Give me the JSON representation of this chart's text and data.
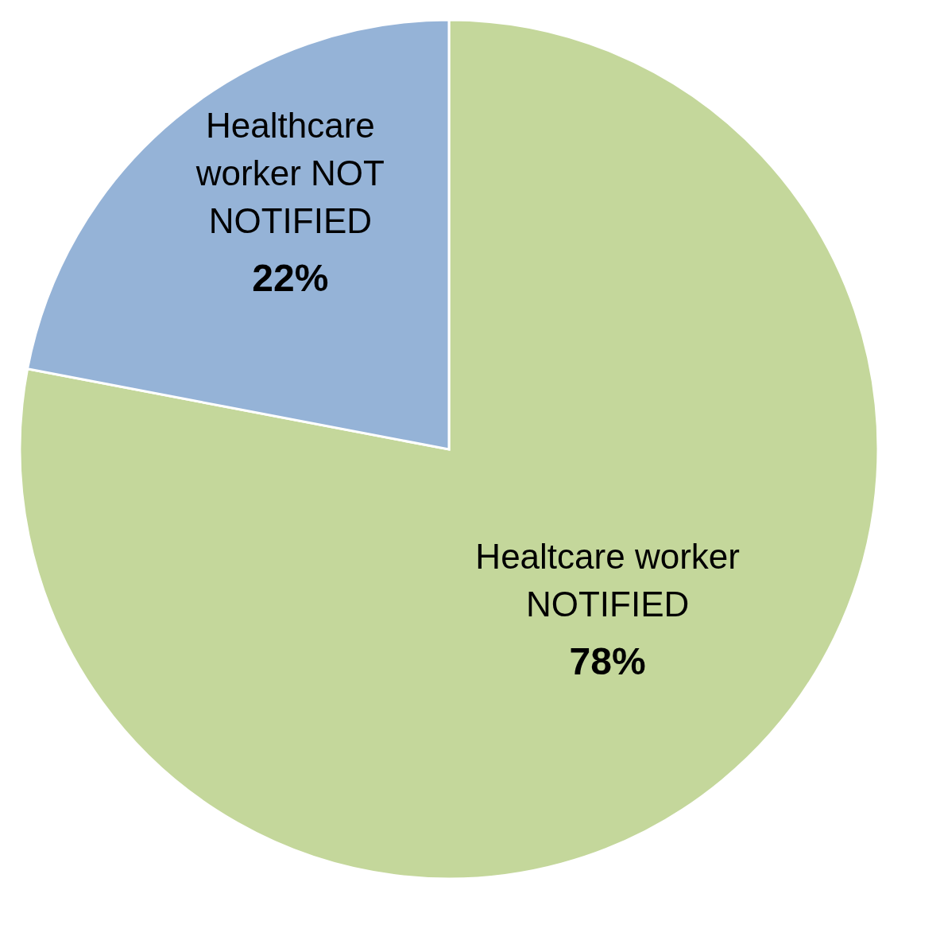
{
  "chart_data": {
    "type": "pie",
    "categories": [
      "Healtcare worker NOTIFIED",
      "Healthcare worker NOT NOTIFIED"
    ],
    "values": [
      78,
      22
    ],
    "colors": [
      "#c4d79b",
      "#95b3d7"
    ],
    "value_labels": [
      "78%",
      "22%"
    ],
    "legend": false
  }
}
